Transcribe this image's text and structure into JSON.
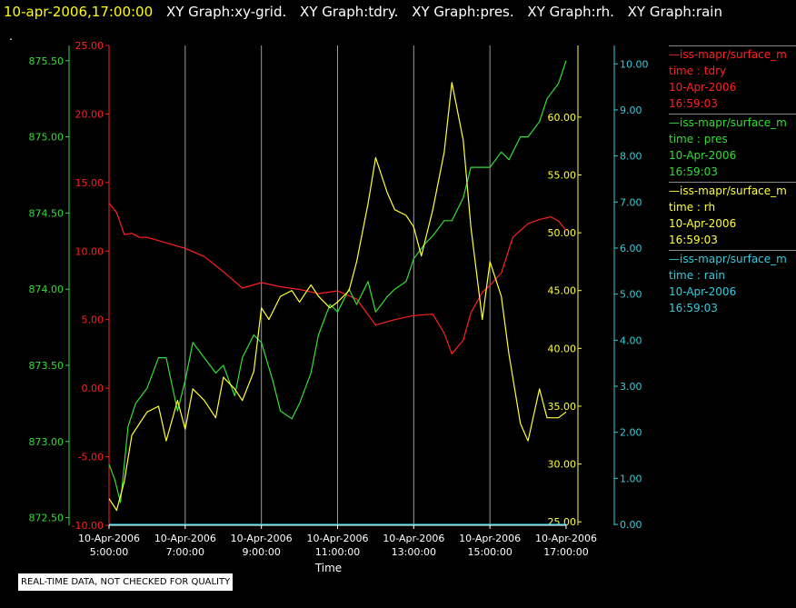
{
  "header": {
    "timestamp": "10-apr-2006,17:00:00",
    "items": [
      "XY Graph:xy-grid.",
      "XY Graph:tdry.",
      "XY Graph:pres.",
      "XY Graph:rh.",
      "XY Graph:rain"
    ]
  },
  "note_dot": ".",
  "legend": [
    {
      "name": "—iss-mapr/surface_m",
      "axis": "time : tdry",
      "date": "10-Apr-2006",
      "time": "16:59:03",
      "color": "#ff2020"
    },
    {
      "name": "—iss-mapr/surface_m",
      "axis": "time : pres",
      "date": "10-Apr-2006",
      "time": "16:59:03",
      "color": "#33dd33"
    },
    {
      "name": "—iss-mapr/surface_m",
      "axis": "time : rh",
      "date": "10-Apr-2006",
      "time": "16:59:03",
      "color": "#ffff33"
    },
    {
      "name": "—iss-mapr/surface_m",
      "axis": "time : rain",
      "date": "10-Apr-2006",
      "time": "16:59:03",
      "color": "#33ccdd"
    }
  ],
  "qc_note": "REAL-TIME DATA, NOT CHECKED FOR QUALITY",
  "chart_data": {
    "type": "line",
    "title": "",
    "xlabel": "Time",
    "x_ticks": [
      {
        "date": "10-Apr-2006",
        "time": "5:00:00",
        "hour": 5
      },
      {
        "date": "10-Apr-2006",
        "time": "7:00:00",
        "hour": 7
      },
      {
        "date": "10-Apr-2006",
        "time": "9:00:00",
        "hour": 9
      },
      {
        "date": "10-Apr-2006",
        "time": "11:00:00",
        "hour": 11
      },
      {
        "date": "10-Apr-2006",
        "time": "13:00:00",
        "hour": 13
      },
      {
        "date": "10-Apr-2006",
        "time": "15:00:00",
        "hour": 15
      },
      {
        "date": "10-Apr-2006",
        "time": "17:00:00",
        "hour": 17
      }
    ],
    "xlim_hours": [
      5,
      17
    ],
    "grid": "vertical",
    "axes": [
      {
        "id": "tdry",
        "color": "#ff2020",
        "range": [
          -10,
          25
        ],
        "ticks": [
          "-10.00",
          "-5.00",
          "0.00",
          "5.00",
          "10.00",
          "15.00",
          "20.00",
          "25.00"
        ],
        "side": "left-inner"
      },
      {
        "id": "pres",
        "color": "#33dd33",
        "range": [
          872.45,
          875.6
        ],
        "ticks": [
          "872.50",
          "873.00",
          "873.50",
          "874.00",
          "874.50",
          "875.00",
          "875.50"
        ],
        "side": "left-outer"
      },
      {
        "id": "rh",
        "color": "#ffff33",
        "range": [
          24.7,
          66.2
        ],
        "ticks": [
          "25.00",
          "30.00",
          "35.00",
          "40.00",
          "45.00",
          "50.00",
          "55.00",
          "60.00"
        ],
        "side": "right-inner"
      },
      {
        "id": "rain",
        "color": "#33ccdd",
        "range": [
          -0.02,
          10.4
        ],
        "ticks": [
          "0.00",
          "1.00",
          "2.00",
          "3.00",
          "4.00",
          "5.00",
          "6.00",
          "7.00",
          "8.00",
          "9.00",
          "10.00"
        ],
        "side": "right-outer"
      }
    ],
    "series": [
      {
        "axis": "tdry",
        "color": "#ff2020",
        "x": [
          5.0,
          5.2,
          5.4,
          5.6,
          5.8,
          6.0,
          6.5,
          7.0,
          7.5,
          8.0,
          8.5,
          9.0,
          9.5,
          10.0,
          10.5,
          11.0,
          11.5,
          12.0,
          12.5,
          13.0,
          13.5,
          13.8,
          14.0,
          14.3,
          14.5,
          14.8,
          15.0,
          15.3,
          15.6,
          16.0,
          16.3,
          16.6,
          16.8,
          17.0
        ],
        "y": [
          13.5,
          12.8,
          11.2,
          11.3,
          11.0,
          11.0,
          10.6,
          10.2,
          9.6,
          8.5,
          7.3,
          7.7,
          7.4,
          7.2,
          6.9,
          7.1,
          6.5,
          4.6,
          5.0,
          5.3,
          5.4,
          4.0,
          2.5,
          3.5,
          5.5,
          7.0,
          7.5,
          8.4,
          11.0,
          12.0,
          12.3,
          12.5,
          12.2,
          11.5
        ]
      },
      {
        "axis": "pres",
        "color": "#33dd33",
        "x": [
          5.0,
          5.15,
          5.3,
          5.5,
          5.7,
          6.0,
          6.3,
          6.5,
          6.8,
          7.0,
          7.2,
          7.5,
          7.8,
          8.0,
          8.3,
          8.5,
          8.8,
          9.0,
          9.3,
          9.5,
          9.8,
          10.0,
          10.3,
          10.5,
          10.8,
          11.0,
          11.3,
          11.5,
          11.8,
          12.0,
          12.3,
          12.5,
          12.8,
          13.0,
          13.3,
          13.5,
          13.8,
          14.0,
          14.3,
          14.5,
          14.8,
          15.0,
          15.3,
          15.5,
          15.8,
          16.0,
          16.3,
          16.5,
          16.8,
          17.0
        ],
        "y": [
          872.85,
          872.75,
          872.6,
          873.1,
          873.25,
          873.35,
          873.55,
          873.55,
          873.2,
          873.4,
          873.65,
          873.55,
          873.45,
          873.5,
          873.3,
          873.55,
          873.7,
          873.65,
          873.4,
          873.2,
          873.15,
          873.25,
          873.45,
          873.7,
          873.9,
          873.85,
          874.0,
          873.9,
          874.05,
          873.85,
          873.95,
          874.0,
          874.05,
          874.2,
          874.3,
          874.35,
          874.45,
          874.45,
          874.6,
          874.8,
          874.8,
          874.8,
          874.9,
          874.85,
          875.0,
          875.0,
          875.1,
          875.25,
          875.35,
          875.5
        ]
      },
      {
        "axis": "rh",
        "color": "#ffff33",
        "x": [
          5.0,
          5.2,
          5.4,
          5.6,
          5.8,
          6.0,
          6.3,
          6.5,
          6.8,
          7.0,
          7.2,
          7.5,
          7.8,
          8.0,
          8.3,
          8.5,
          8.8,
          9.0,
          9.2,
          9.5,
          9.8,
          10.0,
          10.3,
          10.5,
          10.8,
          11.0,
          11.3,
          11.5,
          11.8,
          12.0,
          12.3,
          12.5,
          12.8,
          13.0,
          13.2,
          13.5,
          13.8,
          14.0,
          14.3,
          14.5,
          14.8,
          15.0,
          15.3,
          15.5,
          15.8,
          16.0,
          16.3,
          16.5,
          16.8,
          17.0
        ],
        "y": [
          27.0,
          26.0,
          28.5,
          32.5,
          33.5,
          34.5,
          35.0,
          32.0,
          35.5,
          33.0,
          36.5,
          35.5,
          34.0,
          37.5,
          36.5,
          35.5,
          38.0,
          43.5,
          42.5,
          44.5,
          45.0,
          44.0,
          45.5,
          44.5,
          43.5,
          44.0,
          45.0,
          47.5,
          52.5,
          56.5,
          53.5,
          52.0,
          51.5,
          50.5,
          48.0,
          52.0,
          57.0,
          63.0,
          58.0,
          50.5,
          42.5,
          47.5,
          44.5,
          39.5,
          33.5,
          32.0,
          36.5,
          34.0,
          34.0,
          34.5
        ]
      },
      {
        "axis": "rain",
        "color": "#33ccdd",
        "x": [
          5.0,
          17.0
        ],
        "y": [
          0.0,
          0.0
        ]
      }
    ]
  }
}
